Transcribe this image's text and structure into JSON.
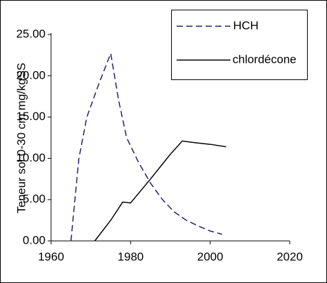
{
  "chart_data": {
    "type": "line",
    "y_label": "Teneur sol 0-30 cm mg/kgSS",
    "xlim": [
      1960,
      2020
    ],
    "xticks": [
      1960,
      1980,
      2000,
      2020
    ],
    "ylim": [
      0,
      25
    ],
    "yticks": [
      {
        "value": 0,
        "label": "0.00"
      },
      {
        "value": 5,
        "label": "5.00"
      },
      {
        "value": 10,
        "label": "10.00"
      },
      {
        "value": 15,
        "label": "15.00"
      },
      {
        "value": 20,
        "label": "20.00"
      },
      {
        "value": 25,
        "label": "25.00"
      }
    ],
    "grid": false,
    "legend": "upper right",
    "series": [
      {
        "name": "HCH",
        "color": "#1f1f6e",
        "dash": true,
        "x": [
          1965,
          1967,
          1969,
          1972,
          1975,
          1977,
          1979,
          1982,
          1985,
          1988,
          1991,
          1994,
          1997,
          2000,
          2003
        ],
        "values": [
          0,
          10,
          15,
          19,
          22.7,
          17,
          12.5,
          9.5,
          7,
          5,
          3.5,
          2.5,
          1.8,
          1.2,
          0.8
        ]
      },
      {
        "name": "chlordécone",
        "color": "#000000",
        "dash": false,
        "x": [
          1971,
          1975,
          1978,
          1980,
          1985,
          1990,
          1993,
          1996,
          2000,
          2004
        ],
        "values": [
          0,
          2.5,
          4.7,
          4.6,
          7.5,
          10.5,
          12.1,
          11.9,
          11.7,
          11.4
        ]
      }
    ]
  }
}
